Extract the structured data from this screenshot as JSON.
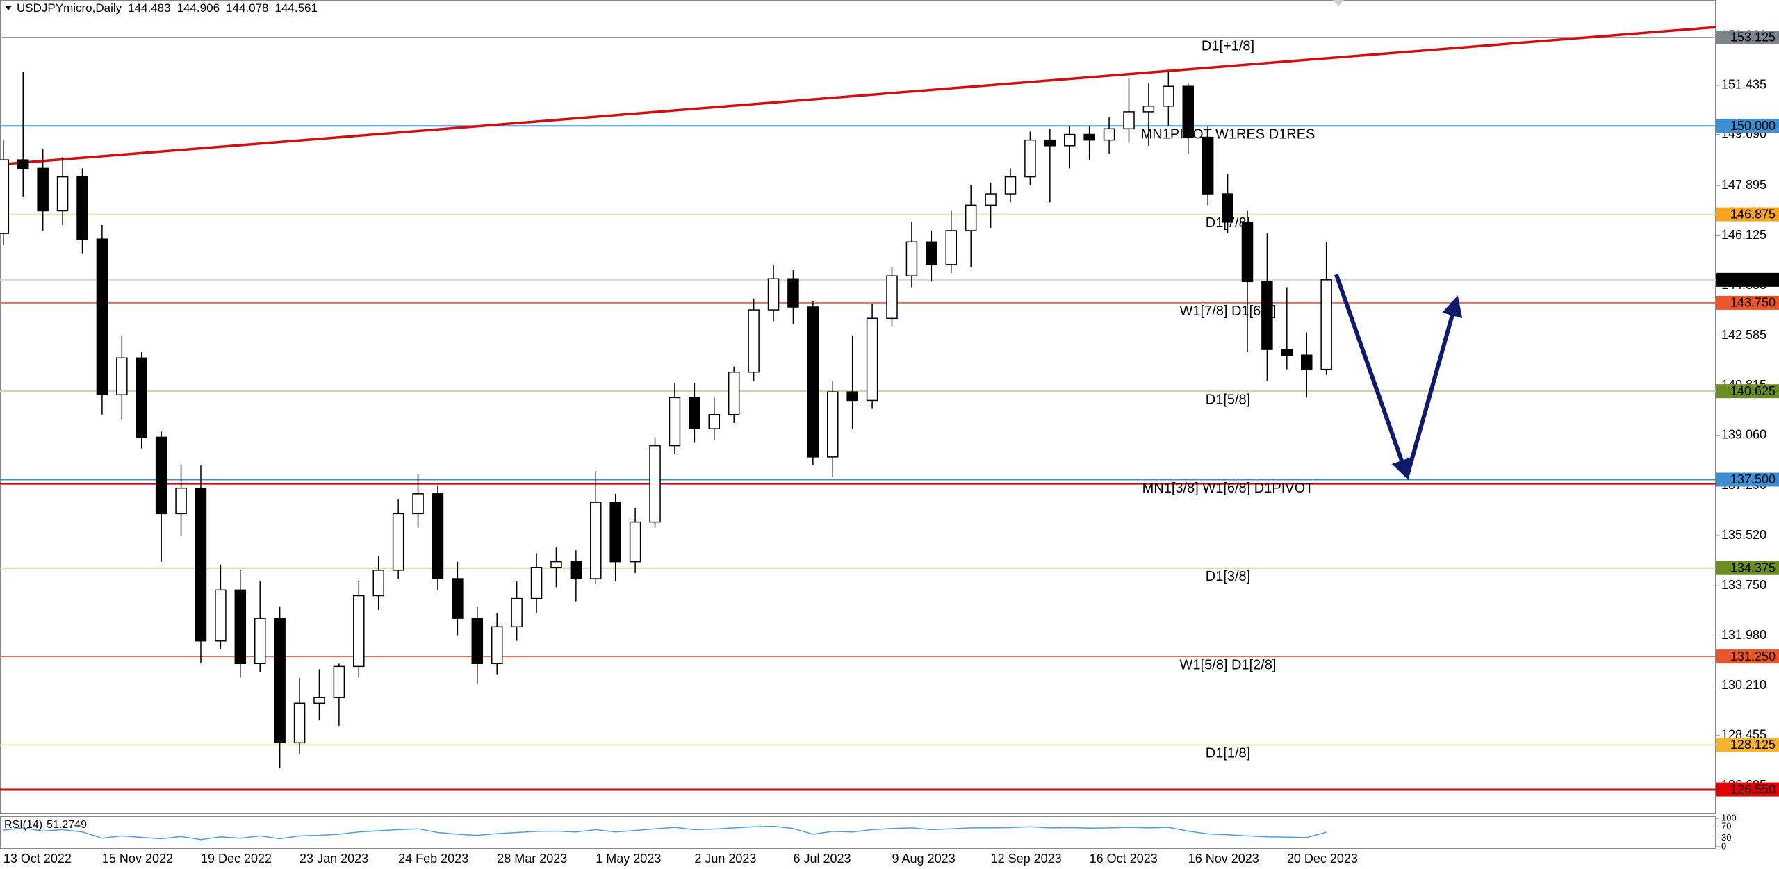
{
  "header": {
    "symbol": "USDJPYmicro,Daily",
    "ohlc": [
      144.483,
      144.906,
      144.078,
      144.561
    ]
  },
  "chart_data": {
    "type": "candlestick",
    "categories": [
      "13 Oct 2022",
      null,
      null,
      null,
      null,
      "15 Nov 2022",
      null,
      null,
      null,
      null,
      "19 Dec 2022",
      null,
      null,
      null,
      null,
      "23 Jan 2023",
      null,
      null,
      null,
      null,
      "24 Feb 2023",
      null,
      null,
      null,
      null,
      "28 Mar 2023",
      null,
      null,
      null,
      null,
      "1 May 2023",
      null,
      null,
      null,
      null,
      "2 Jun 2023",
      null,
      null,
      null,
      null,
      "6 Jul 2023",
      null,
      null,
      null,
      null,
      "9 Aug 2023",
      null,
      null,
      null,
      null,
      "12 Sep 2023",
      null,
      null,
      null,
      null,
      "16 Oct 2023",
      null,
      null,
      null,
      null,
      "16 Nov 2023",
      null,
      null,
      null,
      null,
      "20 Dec 2023",
      null,
      null
    ],
    "open": [
      146.2,
      148.8,
      148.5,
      147.0,
      148.2,
      146.0,
      140.5,
      141.8,
      139.0,
      136.3,
      137.2,
      131.8,
      133.6,
      131.0,
      132.6,
      128.2,
      129.6,
      129.8,
      130.9,
      133.4,
      134.3,
      136.3,
      137.0,
      134.0,
      132.6,
      131.0,
      132.3,
      133.3,
      134.4,
      134.6,
      134.0,
      136.7,
      134.6,
      136.0,
      138.7,
      140.4,
      139.3,
      139.8,
      141.3,
      143.5,
      144.6,
      143.6,
      138.3,
      140.6,
      140.3,
      143.2,
      144.7,
      145.9,
      145.1,
      146.3,
      147.2,
      147.6,
      148.2,
      149.5,
      149.3,
      149.7,
      149.5,
      149.9,
      150.5,
      150.7,
      151.4,
      149.6,
      147.6,
      146.6,
      144.5,
      142.1,
      141.9,
      141.4
    ],
    "high": [
      149.5,
      151.9,
      149.2,
      148.9,
      148.5,
      146.5,
      142.6,
      142.0,
      139.2,
      138.0,
      138.0,
      134.5,
      134.3,
      133.9,
      133.0,
      130.5,
      130.8,
      131.0,
      133.9,
      134.8,
      136.8,
      137.7,
      137.3,
      134.6,
      133.0,
      132.8,
      133.9,
      134.9,
      135.1,
      135.0,
      137.8,
      137.0,
      136.5,
      139.0,
      140.9,
      140.9,
      140.4,
      141.5,
      143.9,
      145.1,
      144.9,
      143.8,
      141.0,
      142.6,
      143.7,
      145.0,
      146.6,
      146.3,
      147.0,
      147.9,
      148.0,
      148.5,
      149.8,
      149.9,
      150.0,
      150.0,
      150.3,
      151.7,
      151.5,
      151.9,
      151.5,
      150.0,
      148.3,
      147.0,
      146.2,
      144.3,
      142.7,
      145.9
    ],
    "low": [
      145.8,
      147.5,
      146.3,
      146.5,
      145.5,
      139.8,
      139.6,
      138.6,
      134.6,
      135.5,
      131.0,
      131.5,
      130.5,
      130.7,
      127.3,
      127.8,
      129.0,
      128.8,
      130.5,
      132.9,
      134.0,
      135.8,
      133.6,
      132.0,
      130.3,
      130.6,
      131.8,
      132.8,
      133.7,
      133.2,
      133.8,
      133.9,
      134.2,
      135.8,
      138.4,
      138.8,
      138.9,
      139.5,
      141.0,
      143.1,
      143.0,
      138.0,
      137.6,
      139.3,
      140.0,
      142.9,
      144.3,
      144.5,
      144.8,
      145.0,
      146.4,
      147.3,
      147.9,
      147.3,
      148.5,
      148.8,
      149.0,
      149.4,
      149.3,
      150.0,
      149.0,
      147.2,
      146.2,
      142.0,
      141.0,
      141.4,
      140.4,
      141.2
    ],
    "close": [
      148.8,
      148.5,
      147.0,
      148.2,
      146.0,
      140.5,
      141.8,
      139.0,
      136.3,
      137.2,
      131.8,
      133.6,
      131.0,
      132.6,
      128.2,
      129.6,
      129.8,
      130.9,
      133.4,
      134.3,
      136.3,
      137.0,
      134.0,
      132.6,
      131.0,
      132.3,
      133.3,
      134.4,
      134.6,
      134.0,
      136.7,
      134.6,
      136.0,
      138.7,
      140.4,
      139.3,
      139.8,
      141.3,
      143.5,
      144.6,
      143.6,
      138.3,
      140.6,
      140.3,
      143.2,
      144.7,
      145.9,
      145.1,
      146.3,
      147.2,
      147.6,
      148.2,
      149.5,
      149.3,
      149.7,
      149.5,
      149.9,
      150.5,
      150.7,
      151.4,
      149.6,
      147.6,
      146.6,
      144.5,
      142.1,
      141.9,
      141.4,
      144.561
    ],
    "up_color": "#ffffff",
    "down_color": "#000000",
    "wick_color": "#000000",
    "xlim": [
      -0.17,
      86.72
    ],
    "ylim": [
      125.68,
      154.45
    ],
    "yticks": [
      126.685,
      128.455,
      {
        "value": 130.21,
        "label": "130.210"
      },
      {
        "value": 131.98,
        "label": "131.980"
      },
      {
        "value": 133.75,
        "label": "133.750"
      },
      {
        "value": 135.52,
        "label": "135.520"
      },
      {
        "value": 137.29,
        "label": "137.290"
      },
      {
        "value": 139.06,
        "label": "139.060"
      },
      140.815,
      142.585,
      144.355,
      146.125,
      147.895,
      {
        "value": 149.69,
        "label": "149.690"
      },
      151.435,
      {
        "value": 153.18,
        "label": "153.180"
      }
    ],
    "levels": [
      {
        "price": 153.125,
        "name": "D1[+1/8]",
        "color": "#9aa0a6",
        "box": "#7d858c",
        "text_color": "#8a9099"
      },
      {
        "price": {
          "value": 150,
          "label": "150.000"
        },
        "name": "MN1PIVOT W1RES D1RES",
        "color": "#3d8fd1",
        "box": "#3d8fd1",
        "text_color": "#4a9ad6"
      },
      {
        "price": 146.875,
        "name": "D1[7/8]",
        "color": "#ece3a4",
        "box": "#f5a623",
        "text_color": "#f0a830"
      },
      {
        "price": 144.561,
        "color": "#d8d8d8",
        "box": "#000000"
      },
      {
        "price": {
          "value": 143.75,
          "label": "143.750"
        },
        "name": "W1[7/8] D1[6/8]",
        "color": "#d9755a",
        "box": "#e8562a",
        "text_color": "#e0582a"
      },
      {
        "price": 140.625,
        "name": "D1[5/8]",
        "color": "#cfcf9f",
        "box": "#6b8e23",
        "text_color": "#6b8e23"
      },
      {
        "price": 137.35,
        "color": "#d00000"
      },
      {
        "price": {
          "value": 137.5,
          "label": "137.500"
        },
        "name": "MN1[3/8] W1[6/8] D1PIVOT",
        "color": "#3d8fd1",
        "box": "#3d8fd1",
        "text_color": "#4a9ad6"
      },
      {
        "price": 134.375,
        "name": "D1[3/8]",
        "color": "#cfcf9f",
        "box": "#6b8e23",
        "text_color": "#6b8e23"
      },
      {
        "price": {
          "value": 131.25,
          "label": "131.250"
        },
        "name": "W1[5/8] D1[2/8]",
        "color": "#d9755a",
        "box": "#e8562a",
        "text_color": "#e0582a"
      },
      {
        "price": 128.125,
        "name": "D1[1/8]",
        "color": "#ece3a4",
        "box": "#f5b32e",
        "text_color": "#f0a830"
      },
      {
        "price": {
          "value": 126.55,
          "label": "126.550"
        },
        "color": "#e00000",
        "box": "#e00000"
      }
    ],
    "trendlines": [
      {
        "x": [
          -0.17,
          86.72
        ],
        "y": [
          148.64,
          153.49
        ],
        "color": "#d01010"
      }
    ],
    "arrow": {
      "x": [
        67.5,
        71.09,
        73.6
      ],
      "y": [
        144.75,
        137.62,
        143.87
      ],
      "color": "#0d1a6e"
    },
    "rsi": {
      "name": "RSI(14)",
      "value": 51.2749,
      "color": "#4aa0e0",
      "ylim": [
        0,
        100
      ],
      "yticks": [
        0,
        30,
        70,
        100
      ],
      "values": [
        58,
        66,
        55,
        60,
        52,
        30,
        38,
        33,
        28,
        36,
        25,
        35,
        30,
        38,
        28,
        38,
        40,
        44,
        52,
        56,
        60,
        63,
        50,
        44,
        40,
        46,
        50,
        54,
        55,
        52,
        60,
        52,
        57,
        63,
        68,
        60,
        62,
        66,
        70,
        72,
        64,
        44,
        54,
        52,
        60,
        64,
        66,
        60,
        63,
        66,
        66,
        67,
        70,
        66,
        67,
        65,
        66,
        68,
        66,
        68,
        55,
        45,
        42,
        38,
        35,
        34,
        32,
        51.2749
      ]
    }
  }
}
